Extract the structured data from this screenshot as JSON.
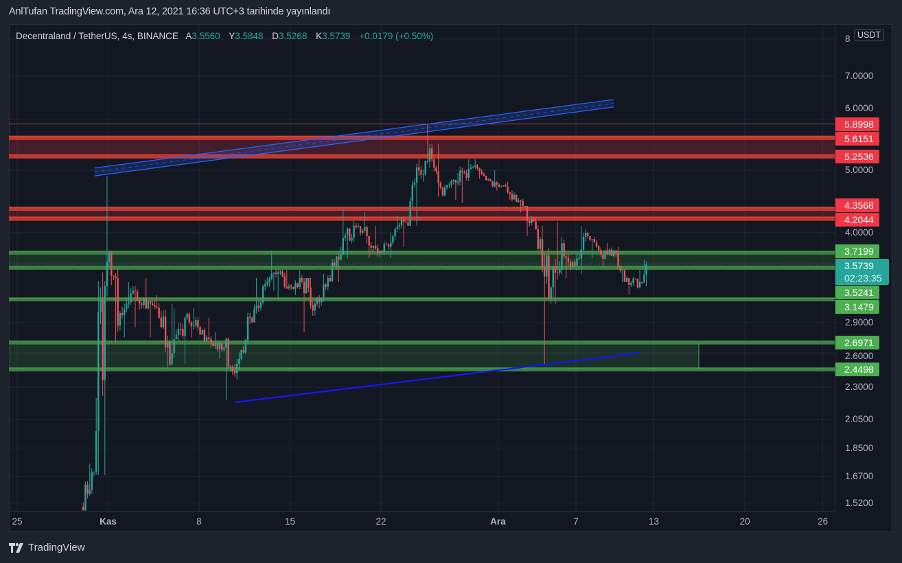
{
  "header": {
    "published": "AnlTufan TradingView.com, Ara 12, 2021 16:36 UTC+3 tarihinde yayınlandı"
  },
  "legend": {
    "symbol": "Decentraland / TetherUS, 4s, BINANCE",
    "open_label": "A",
    "open": "3.5560",
    "high_label": "Y",
    "high": "3.5848",
    "low_label": "D",
    "low": "3.5268",
    "close_label": "K",
    "close": "3.5739",
    "change": "+0.0179 (+0.50%)"
  },
  "axis": {
    "unit": "USDT",
    "countdown": "02:23:35",
    "current_price": "3.5739"
  },
  "footer": {
    "brand": "TradingView"
  },
  "colors": {
    "up": "#26a69a",
    "down": "#ef5350",
    "resistance": "#f23645",
    "support": "#4caf50",
    "trendline": "#2962ff",
    "bg": "#131722"
  },
  "chart_data": {
    "type": "candlestick",
    "title": "Decentraland / TetherUS, 4s, BINANCE",
    "scale": "log",
    "ylim": [
      1.5,
      8.2
    ],
    "xlim_day": [
      0,
      64
    ],
    "x_origin": "Oct 25, 2021",
    "price_ticks": [
      {
        "v": 8,
        "label": "8"
      },
      {
        "v": 7,
        "label": "7.0000"
      },
      {
        "v": 6,
        "label": "6.0000"
      },
      {
        "v": 5,
        "label": "5.0000"
      },
      {
        "v": 4,
        "label": "4.0000"
      },
      {
        "v": 2.9,
        "label": "2.9000"
      },
      {
        "v": 2.6,
        "label": "2.6000"
      },
      {
        "v": 2.3,
        "label": "2.3000"
      },
      {
        "v": 2.05,
        "label": "2.0500"
      },
      {
        "v": 1.85,
        "label": "1.8500"
      },
      {
        "v": 1.67,
        "label": "1.6700"
      },
      {
        "v": 1.52,
        "label": "1.5200"
      }
    ],
    "time_ticks": [
      {
        "day": 0,
        "label": "25"
      },
      {
        "day": 7,
        "label": "Kas",
        "bold": true
      },
      {
        "day": 14,
        "label": "8"
      },
      {
        "day": 21,
        "label": "15"
      },
      {
        "day": 28,
        "label": "22"
      },
      {
        "day": 37,
        "label": "Ara",
        "bold": true
      },
      {
        "day": 43,
        "label": "7"
      },
      {
        "day": 49,
        "label": "13"
      },
      {
        "day": 56,
        "label": "20"
      },
      {
        "day": 62,
        "label": "26"
      }
    ],
    "daily_ohlc": [
      {
        "day": 5,
        "o": 1.5,
        "h": 1.75,
        "l": 1.48,
        "c": 1.7
      },
      {
        "day": 6,
        "o": 1.7,
        "h": 4.9,
        "l": 1.68,
        "c": 3.6
      },
      {
        "day": 7,
        "o": 3.6,
        "h": 3.75,
        "l": 2.7,
        "c": 3.0
      },
      {
        "day": 8,
        "o": 3.0,
        "h": 3.35,
        "l": 2.75,
        "c": 3.25
      },
      {
        "day": 9,
        "o": 3.25,
        "h": 3.4,
        "l": 2.85,
        "c": 3.05
      },
      {
        "day": 10,
        "o": 3.05,
        "h": 3.2,
        "l": 2.75,
        "c": 2.95
      },
      {
        "day": 11,
        "o": 2.95,
        "h": 3.1,
        "l": 2.45,
        "c": 2.6
      },
      {
        "day": 12,
        "o": 2.6,
        "h": 3.05,
        "l": 2.5,
        "c": 2.95
      },
      {
        "day": 13,
        "o": 2.95,
        "h": 3.05,
        "l": 2.75,
        "c": 2.85
      },
      {
        "day": 14,
        "o": 2.85,
        "h": 2.95,
        "l": 2.65,
        "c": 2.7
      },
      {
        "day": 15,
        "o": 2.7,
        "h": 2.8,
        "l": 2.55,
        "c": 2.65
      },
      {
        "day": 16,
        "o": 2.65,
        "h": 2.75,
        "l": 2.2,
        "c": 2.5
      },
      {
        "day": 17,
        "o": 2.5,
        "h": 3.0,
        "l": 2.45,
        "c": 2.95
      },
      {
        "day": 18,
        "o": 2.95,
        "h": 3.4,
        "l": 2.9,
        "c": 3.3
      },
      {
        "day": 19,
        "o": 3.3,
        "h": 3.75,
        "l": 3.25,
        "c": 3.45
      },
      {
        "day": 20,
        "o": 3.45,
        "h": 3.5,
        "l": 3.15,
        "c": 3.3
      },
      {
        "day": 21,
        "o": 3.3,
        "h": 3.5,
        "l": 3.2,
        "c": 3.35
      },
      {
        "day": 22,
        "o": 3.35,
        "h": 3.4,
        "l": 2.8,
        "c": 3.1
      },
      {
        "day": 23,
        "o": 3.1,
        "h": 3.45,
        "l": 3.05,
        "c": 3.4
      },
      {
        "day": 24,
        "o": 3.4,
        "h": 3.8,
        "l": 3.35,
        "c": 3.7
      },
      {
        "day": 25,
        "o": 3.7,
        "h": 4.35,
        "l": 3.65,
        "c": 4.1
      },
      {
        "day": 26,
        "o": 4.1,
        "h": 4.3,
        "l": 3.85,
        "c": 3.95
      },
      {
        "day": 27,
        "o": 3.95,
        "h": 4.1,
        "l": 3.65,
        "c": 3.75
      },
      {
        "day": 28,
        "o": 3.75,
        "h": 4.0,
        "l": 3.65,
        "c": 3.95
      },
      {
        "day": 29,
        "o": 3.95,
        "h": 4.25,
        "l": 3.8,
        "c": 4.15
      },
      {
        "day": 30,
        "o": 4.15,
        "h": 5.2,
        "l": 4.1,
        "c": 5.0
      },
      {
        "day": 31,
        "o": 5.0,
        "h": 5.9,
        "l": 4.8,
        "c": 5.2
      },
      {
        "day": 32,
        "o": 5.2,
        "h": 5.5,
        "l": 4.55,
        "c": 4.7
      },
      {
        "day": 33,
        "o": 4.7,
        "h": 4.95,
        "l": 4.5,
        "c": 4.8
      },
      {
        "day": 34,
        "o": 4.8,
        "h": 5.2,
        "l": 4.45,
        "c": 5.05
      },
      {
        "day": 35,
        "o": 5.05,
        "h": 5.2,
        "l": 4.85,
        "c": 4.9
      },
      {
        "day": 36,
        "o": 4.9,
        "h": 5.0,
        "l": 4.65,
        "c": 4.75
      },
      {
        "day": 37,
        "o": 4.75,
        "h": 4.8,
        "l": 4.5,
        "c": 4.6
      },
      {
        "day": 38,
        "o": 4.6,
        "h": 4.65,
        "l": 4.3,
        "c": 4.4
      },
      {
        "day": 39,
        "o": 4.4,
        "h": 4.4,
        "l": 3.95,
        "c": 4.05
      },
      {
        "day": 40,
        "o": 4.05,
        "h": 4.1,
        "l": 2.5,
        "c": 3.15
      },
      {
        "day": 41,
        "o": 3.15,
        "h": 4.15,
        "l": 3.1,
        "c": 3.85
      },
      {
        "day": 42,
        "o": 3.85,
        "h": 3.9,
        "l": 3.4,
        "c": 3.55
      },
      {
        "day": 43,
        "o": 3.55,
        "h": 4.1,
        "l": 3.45,
        "c": 3.95
      },
      {
        "day": 44,
        "o": 3.95,
        "h": 3.95,
        "l": 3.65,
        "c": 3.7
      },
      {
        "day": 45,
        "o": 3.7,
        "h": 3.85,
        "l": 3.55,
        "c": 3.75
      },
      {
        "day": 46,
        "o": 3.75,
        "h": 3.8,
        "l": 3.35,
        "c": 3.4
      },
      {
        "day": 47,
        "o": 3.4,
        "h": 3.5,
        "l": 3.2,
        "c": 3.35
      },
      {
        "day": 48,
        "o": 3.35,
        "h": 3.63,
        "l": 3.3,
        "c": 3.5739,
        "partial": true
      }
    ],
    "resistance_levels": [
      {
        "price": 5.8998,
        "label": "5.8998",
        "style": "thin"
      },
      {
        "price": 5.6151,
        "label": "5.6151",
        "style": "thick"
      },
      {
        "price": 5.2536,
        "label": "5.2536",
        "style": "thick"
      },
      {
        "price": 4.3568,
        "label": "4.3568",
        "style": "thick"
      },
      {
        "price": 4.2044,
        "label": "4.2044",
        "style": "thick"
      }
    ],
    "resistance_zones": [
      [
        5.2536,
        5.6151
      ],
      [
        4.2044,
        4.3568
      ]
    ],
    "support_levels": [
      {
        "price": 3.7199,
        "label": "3.7199"
      },
      {
        "price": 3.5241,
        "label": "3.5241"
      },
      {
        "price": 3.1479,
        "label": "3.1479"
      },
      {
        "price": 2.6971,
        "label": "2.6971"
      },
      {
        "price": 2.4498,
        "label": "2.4498"
      }
    ],
    "support_zones": [
      [
        3.5241,
        3.7199
      ],
      [
        2.4498,
        2.6971
      ]
    ],
    "channel": {
      "start": {
        "day": 5.95,
        "upper": 5.04,
        "lower": 4.9
      },
      "end": {
        "day": 45.9,
        "upper": 6.44,
        "lower": 6.27
      }
    },
    "trendline": {
      "start": {
        "day": 16.8,
        "price": 2.18
      },
      "end": {
        "day": 47.9,
        "price": 2.6
      }
    }
  }
}
